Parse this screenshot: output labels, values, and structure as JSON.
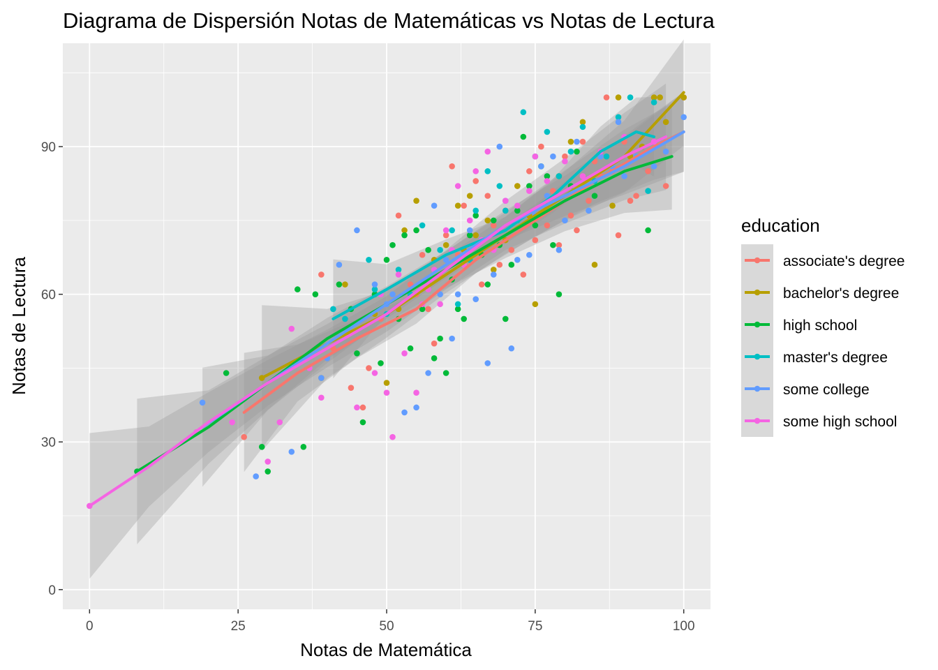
{
  "chart_data": {
    "type": "scatter",
    "title": "Diagrama de Dispersión Notas de Matemáticas vs Notas de Lectura",
    "xlabel": "Notas de Matemática",
    "ylabel": "Notas de Lectura",
    "xlim": [
      -4.5,
      104.5
    ],
    "ylim": [
      -4,
      111
    ],
    "x_ticks": [
      0,
      25,
      50,
      75,
      100
    ],
    "y_ticks": [
      0,
      30,
      60,
      90
    ],
    "x_tick_labels": [
      "0",
      "25",
      "50",
      "75",
      "100"
    ],
    "y_tick_labels": [
      "0",
      "30",
      "60",
      "90"
    ],
    "grid": true,
    "legend": {
      "title": "education",
      "position": "right"
    },
    "colors": {
      "panel_background": "#EBEBEB",
      "grid": "#FFFFFF",
      "ribbon": "#999999"
    },
    "series": [
      {
        "name": "associate's degree",
        "color": "#F8766D",
        "points": [
          [
            26,
            31
          ],
          [
            39,
            64
          ],
          [
            41,
            49
          ],
          [
            44,
            41
          ],
          [
            46,
            37
          ],
          [
            47,
            45
          ],
          [
            49,
            55
          ],
          [
            52,
            76
          ],
          [
            54,
            62
          ],
          [
            55,
            60
          ],
          [
            56,
            68
          ],
          [
            57,
            57
          ],
          [
            58,
            50
          ],
          [
            59,
            64
          ],
          [
            60,
            72
          ],
          [
            61,
            86
          ],
          [
            62,
            68
          ],
          [
            63,
            78
          ],
          [
            64,
            72
          ],
          [
            65,
            83
          ],
          [
            66,
            62
          ],
          [
            67,
            80
          ],
          [
            68,
            74
          ],
          [
            69,
            66
          ],
          [
            70,
            77
          ],
          [
            71,
            69
          ],
          [
            72,
            82
          ],
          [
            73,
            64
          ],
          [
            74,
            85
          ],
          [
            75,
            71
          ],
          [
            76,
            90
          ],
          [
            77,
            74
          ],
          [
            78,
            81
          ],
          [
            79,
            70
          ],
          [
            80,
            88
          ],
          [
            81,
            76
          ],
          [
            82,
            73
          ],
          [
            83,
            91
          ],
          [
            84,
            79
          ],
          [
            85,
            87
          ],
          [
            86,
            84
          ],
          [
            87,
            100
          ],
          [
            88,
            85
          ],
          [
            89,
            72
          ],
          [
            90,
            91
          ],
          [
            91,
            79
          ],
          [
            92,
            80
          ],
          [
            94,
            85
          ],
          [
            97,
            82
          ],
          [
            100,
            100
          ]
        ],
        "smooth": [
          [
            26,
            36
          ],
          [
            35,
            44
          ],
          [
            45,
            51
          ],
          [
            55,
            57
          ],
          [
            65,
            67
          ],
          [
            75,
            75
          ],
          [
            85,
            83
          ],
          [
            95,
            90
          ],
          [
            100,
            93
          ]
        ],
        "band": 3
      },
      {
        "name": "bachelor's degree",
        "color": "#B79F00",
        "points": [
          [
            29,
            43
          ],
          [
            39,
            43
          ],
          [
            43,
            62
          ],
          [
            48,
            56
          ],
          [
            50,
            42
          ],
          [
            52,
            57
          ],
          [
            53,
            73
          ],
          [
            55,
            79
          ],
          [
            58,
            67
          ],
          [
            60,
            70
          ],
          [
            62,
            78
          ],
          [
            63,
            69
          ],
          [
            64,
            80
          ],
          [
            65,
            72
          ],
          [
            67,
            75
          ],
          [
            68,
            65
          ],
          [
            70,
            71
          ],
          [
            72,
            82
          ],
          [
            74,
            76
          ],
          [
            75,
            58
          ],
          [
            77,
            78
          ],
          [
            79,
            84
          ],
          [
            81,
            91
          ],
          [
            83,
            95
          ],
          [
            85,
            66
          ],
          [
            86,
            89
          ],
          [
            88,
            78
          ],
          [
            89,
            100
          ],
          [
            91,
            88
          ],
          [
            93,
            90
          ],
          [
            95,
            100
          ],
          [
            96,
            100
          ],
          [
            97,
            95
          ],
          [
            100,
            100
          ]
        ],
        "smooth": [
          [
            29,
            43
          ],
          [
            40,
            50
          ],
          [
            50,
            56
          ],
          [
            60,
            64
          ],
          [
            70,
            72
          ],
          [
            80,
            80
          ],
          [
            90,
            88
          ],
          [
            100,
            101
          ]
        ],
        "band": 4
      },
      {
        "name": "high school",
        "color": "#00BA38",
        "points": [
          [
            8,
            24
          ],
          [
            23,
            44
          ],
          [
            29,
            29
          ],
          [
            30,
            24
          ],
          [
            35,
            61
          ],
          [
            36,
            29
          ],
          [
            38,
            60
          ],
          [
            42,
            62
          ],
          [
            44,
            57
          ],
          [
            45,
            48
          ],
          [
            46,
            34
          ],
          [
            48,
            60
          ],
          [
            49,
            46
          ],
          [
            50,
            67
          ],
          [
            51,
            70
          ],
          [
            52,
            55
          ],
          [
            53,
            72
          ],
          [
            54,
            49
          ],
          [
            55,
            73
          ],
          [
            56,
            57
          ],
          [
            57,
            69
          ],
          [
            58,
            47
          ],
          [
            59,
            51
          ],
          [
            60,
            44
          ],
          [
            61,
            63
          ],
          [
            62,
            57
          ],
          [
            63,
            55
          ],
          [
            64,
            72
          ],
          [
            65,
            76
          ],
          [
            66,
            68
          ],
          [
            67,
            62
          ],
          [
            68,
            75
          ],
          [
            69,
            70
          ],
          [
            70,
            55
          ],
          [
            71,
            66
          ],
          [
            72,
            77
          ],
          [
            73,
            92
          ],
          [
            74,
            82
          ],
          [
            75,
            74
          ],
          [
            76,
            86
          ],
          [
            77,
            84
          ],
          [
            78,
            70
          ],
          [
            79,
            60
          ],
          [
            81,
            82
          ],
          [
            82,
            89
          ],
          [
            85,
            80
          ],
          [
            94,
            73
          ]
        ],
        "smooth": [
          [
            8,
            24
          ],
          [
            20,
            33
          ],
          [
            30,
            42
          ],
          [
            40,
            51
          ],
          [
            50,
            58
          ],
          [
            60,
            65
          ],
          [
            70,
            72
          ],
          [
            80,
            79
          ],
          [
            90,
            85
          ],
          [
            98,
            88
          ]
        ],
        "band": 4
      },
      {
        "name": "master's degree",
        "color": "#00BFC4",
        "points": [
          [
            41,
            57
          ],
          [
            43,
            55
          ],
          [
            47,
            67
          ],
          [
            48,
            61
          ],
          [
            50,
            56
          ],
          [
            52,
            65
          ],
          [
            54,
            60
          ],
          [
            56,
            74
          ],
          [
            57,
            62
          ],
          [
            59,
            69
          ],
          [
            61,
            73
          ],
          [
            62,
            58
          ],
          [
            64,
            67
          ],
          [
            65,
            77
          ],
          [
            67,
            85
          ],
          [
            69,
            82
          ],
          [
            70,
            77
          ],
          [
            72,
            75
          ],
          [
            73,
            97
          ],
          [
            75,
            88
          ],
          [
            77,
            93
          ],
          [
            79,
            84
          ],
          [
            81,
            89
          ],
          [
            83,
            94
          ],
          [
            85,
            83
          ],
          [
            87,
            88
          ],
          [
            89,
            96
          ],
          [
            91,
            100
          ],
          [
            94,
            81
          ],
          [
            95,
            99
          ]
        ],
        "smooth": [
          [
            41,
            55
          ],
          [
            50,
            61
          ],
          [
            60,
            68
          ],
          [
            70,
            73
          ],
          [
            78,
            80
          ],
          [
            86,
            89
          ],
          [
            92,
            93
          ],
          [
            95,
            92
          ]
        ],
        "band": 3
      },
      {
        "name": "some college",
        "color": "#619CFF",
        "points": [
          [
            19,
            38
          ],
          [
            28,
            23
          ],
          [
            34,
            28
          ],
          [
            39,
            43
          ],
          [
            40,
            47
          ],
          [
            42,
            66
          ],
          [
            45,
            73
          ],
          [
            48,
            62
          ],
          [
            50,
            58
          ],
          [
            51,
            60
          ],
          [
            53,
            36
          ],
          [
            55,
            37
          ],
          [
            57,
            44
          ],
          [
            58,
            78
          ],
          [
            59,
            60
          ],
          [
            60,
            67
          ],
          [
            61,
            51
          ],
          [
            62,
            60
          ],
          [
            64,
            73
          ],
          [
            65,
            59
          ],
          [
            66,
            71
          ],
          [
            67,
            46
          ],
          [
            68,
            64
          ],
          [
            69,
            90
          ],
          [
            70,
            79
          ],
          [
            71,
            49
          ],
          [
            72,
            67
          ],
          [
            74,
            68
          ],
          [
            75,
            76
          ],
          [
            76,
            86
          ],
          [
            77,
            80
          ],
          [
            78,
            88
          ],
          [
            79,
            69
          ],
          [
            80,
            75
          ],
          [
            82,
            91
          ],
          [
            84,
            77
          ],
          [
            86,
            88
          ],
          [
            88,
            86
          ],
          [
            89,
            95
          ],
          [
            90,
            84
          ],
          [
            92,
            88
          ],
          [
            95,
            86
          ],
          [
            97,
            89
          ],
          [
            100,
            96
          ]
        ],
        "smooth": [
          [
            19,
            33
          ],
          [
            30,
            42
          ],
          [
            40,
            50
          ],
          [
            50,
            58
          ],
          [
            60,
            66
          ],
          [
            70,
            74
          ],
          [
            80,
            80
          ],
          [
            90,
            86
          ],
          [
            100,
            93
          ]
        ],
        "band": 3
      },
      {
        "name": "some high school",
        "color": "#F564E3",
        "points": [
          [
            0,
            17
          ],
          [
            18,
            32
          ],
          [
            24,
            34
          ],
          [
            30,
            26
          ],
          [
            32,
            34
          ],
          [
            34,
            53
          ],
          [
            37,
            45
          ],
          [
            39,
            39
          ],
          [
            43,
            52
          ],
          [
            45,
            37
          ],
          [
            48,
            44
          ],
          [
            49,
            60
          ],
          [
            50,
            40
          ],
          [
            51,
            31
          ],
          [
            52,
            64
          ],
          [
            53,
            48
          ],
          [
            55,
            40
          ],
          [
            56,
            58
          ],
          [
            57,
            61
          ],
          [
            58,
            65
          ],
          [
            59,
            58
          ],
          [
            60,
            73
          ],
          [
            61,
            69
          ],
          [
            62,
            82
          ],
          [
            63,
            66
          ],
          [
            64,
            75
          ],
          [
            65,
            85
          ],
          [
            66,
            71
          ],
          [
            67,
            89
          ],
          [
            68,
            69
          ],
          [
            70,
            79
          ],
          [
            72,
            78
          ],
          [
            74,
            81
          ],
          [
            75,
            88
          ],
          [
            77,
            83
          ],
          [
            80,
            87
          ],
          [
            83,
            84
          ],
          [
            86,
            89
          ],
          [
            90,
            92
          ],
          [
            95,
            91
          ]
        ],
        "smooth": [
          [
            0,
            17
          ],
          [
            10,
            25
          ],
          [
            20,
            34
          ],
          [
            30,
            42
          ],
          [
            40,
            49
          ],
          [
            50,
            56
          ],
          [
            60,
            65
          ],
          [
            70,
            74
          ],
          [
            80,
            81
          ],
          [
            90,
            88
          ],
          [
            97,
            92
          ]
        ],
        "band": 4
      }
    ]
  }
}
